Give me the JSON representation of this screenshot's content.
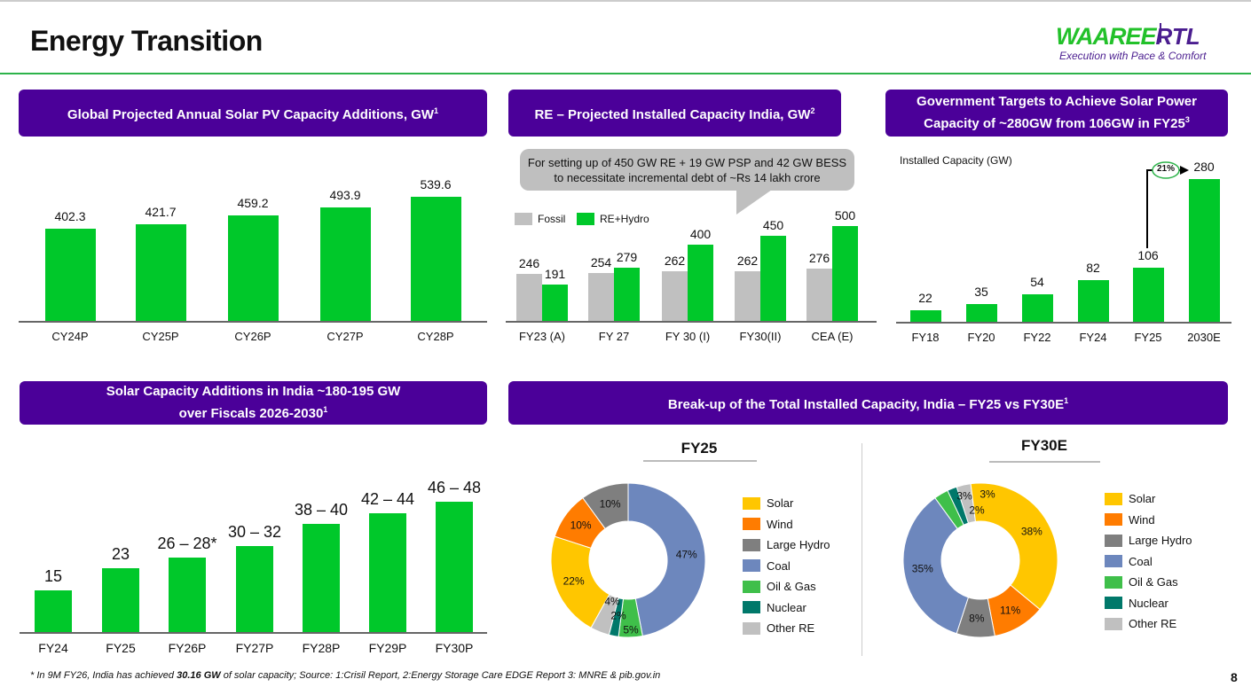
{
  "header": {
    "title": "Energy Transition",
    "logo": {
      "brand": "WAAREE",
      "sub": "RTL",
      "tagline": "Execution with Pace & Comfort"
    }
  },
  "panels": {
    "global": {
      "title": "Global Projected Annual Solar PV Capacity Additions",
      "sup": "1",
      "unit": ", GW"
    },
    "re": {
      "title": "RE – Projected Installed Capacity India",
      "sup": "2",
      "unit": ", GW"
    },
    "gov": {
      "title_line1": "Government Targets to Achieve Solar Power",
      "title_line2": "Capacity of ~280GW from 106GW in FY25",
      "sup": "3"
    },
    "india": {
      "title_line1": "Solar Capacity Additions in India  ~180-195 GW",
      "title_line2": "over Fiscals 2026-2030",
      "sup": "1"
    },
    "breakup": {
      "title": "Break-up of the Total Installed Capacity, India – FY25 vs FY30E",
      "sup": "1"
    }
  },
  "callout": {
    "line1": "For setting up of 450 GW RE + 19 GW PSP and 42 GW BESS",
    "line2": "to necessitate incremental debt of ~Rs 14 lakh crore"
  },
  "gov_extra": {
    "axis_note": "Installed Capacity (GW)",
    "cagr": "21%"
  },
  "chart_data": [
    {
      "type": "bar",
      "title": "Global Projected Annual Solar PV Capacity Additions, GW",
      "categories": [
        "CY24P",
        "CY25P",
        "CY26P",
        "CY27P",
        "CY28P"
      ],
      "values": [
        402.3,
        421.7,
        459.2,
        493.9,
        539.6
      ],
      "labels": [
        "402.3",
        "421.7",
        "459.2",
        "493.9",
        "539.6"
      ],
      "color": "#00c82a"
    },
    {
      "type": "bar",
      "title": "RE – Projected Installed Capacity India, GW",
      "categories": [
        "FY23 (A)",
        "FY 27",
        "FY 30 (I)",
        "FY30(II)",
        "CEA (E)"
      ],
      "series": [
        {
          "name": "Fossil",
          "color": "#c0c0c0",
          "values": [
            246,
            254,
            262,
            262,
            276
          ]
        },
        {
          "name": "RE+Hydro",
          "color": "#00c82a",
          "values": [
            191,
            279,
            400,
            450,
            500
          ]
        }
      ],
      "legend": "top-left"
    },
    {
      "type": "bar",
      "title": "Government Targets to Achieve Solar Power Capacity",
      "ylabel": "Installed Capacity (GW)",
      "categories": [
        "FY18",
        "FY20",
        "FY22",
        "FY24",
        "FY25",
        "2030E"
      ],
      "values": [
        22,
        35,
        54,
        82,
        106,
        280
      ],
      "labels": [
        "22",
        "35",
        "54",
        "82",
        "106",
        "280"
      ],
      "color": "#00c82a"
    },
    {
      "type": "bar",
      "title": "Solar Capacity Additions in India",
      "categories": [
        "FY24",
        "FY25",
        "FY26P",
        "FY27P",
        "FY28P",
        "FY29P",
        "FY30P"
      ],
      "values": [
        15,
        23,
        27,
        31,
        39,
        43,
        47
      ],
      "labels": [
        "15",
        "23",
        "26 – 28*",
        "30 – 32",
        "38 – 40",
        "42 – 44",
        "46 – 48"
      ],
      "color": "#00c82a"
    },
    {
      "type": "pie",
      "title": "FY25",
      "donut": true,
      "slices": [
        {
          "name": "Coal",
          "value": 47
        },
        {
          "name": "Oil & Gas",
          "value": 5
        },
        {
          "name": "Nuclear",
          "value": 2
        },
        {
          "name": "Other RE",
          "value": 4
        },
        {
          "name": "Solar",
          "value": 22
        },
        {
          "name": "Wind",
          "value": 10
        },
        {
          "name": "Large Hydro",
          "value": 10
        }
      ]
    },
    {
      "type": "pie",
      "title": "FY30E",
      "donut": true,
      "slices": [
        {
          "name": "Other RE",
          "value": 3
        },
        {
          "name": "Solar",
          "value": 38
        },
        {
          "name": "Wind",
          "value": 11
        },
        {
          "name": "Large Hydro",
          "value": 8
        },
        {
          "name": "Coal",
          "value": 35
        },
        {
          "name": "Oil & Gas",
          "value": 3
        },
        {
          "name": "Nuclear",
          "value": 2
        }
      ]
    }
  ],
  "pie_legend": [
    {
      "name": "Solar",
      "color": "#ffc600"
    },
    {
      "name": "Wind",
      "color": "#ff7c00"
    },
    {
      "name": "Large Hydro",
      "color": "#7f7f7f"
    },
    {
      "name": "Coal",
      "color": "#6d87bd"
    },
    {
      "name": "Oil & Gas",
      "color": "#3fbf4a"
    },
    {
      "name": "Nuclear",
      "color": "#00786a"
    },
    {
      "name": "Other RE",
      "color": "#c0c0c0"
    }
  ],
  "footer": {
    "pre": "* In 9M FY26, India has achieved ",
    "bold": "30.16 GW",
    "post": " of solar capacity; Source: 1:Crisil Report, 2:Energy Storage Care EDGE Report 3: MNRE & pib.gov.in",
    "page": "8"
  }
}
